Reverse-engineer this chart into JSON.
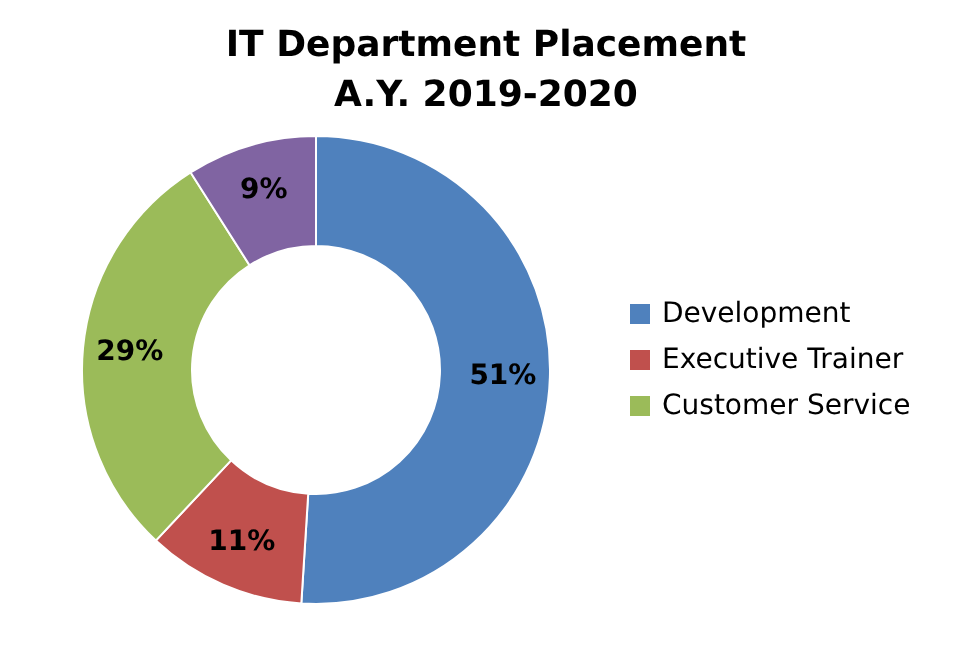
{
  "chart_data": {
    "type": "donut",
    "title": "IT Department Placement\nA.Y. 2019-2020",
    "categories": [
      "Development",
      "Executive Trainer",
      "Customer Service",
      null
    ],
    "values": [
      51,
      11,
      29,
      9
    ],
    "value_labels": [
      "51%",
      "11%",
      "29%",
      "9%"
    ],
    "colors": [
      "#4f81bd",
      "#c0504d",
      "#9bbb59",
      "#8064a2"
    ],
    "legend": "right"
  }
}
